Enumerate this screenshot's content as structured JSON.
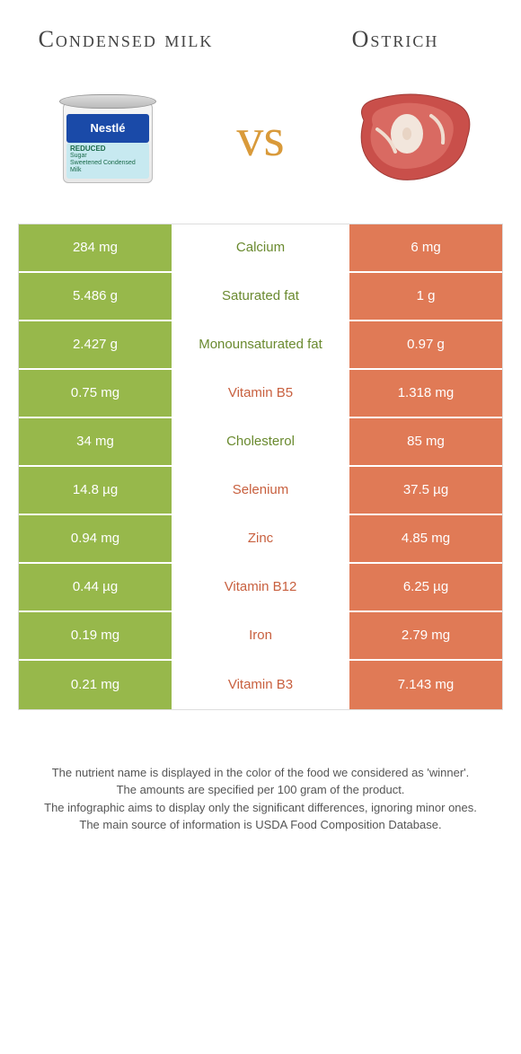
{
  "colors": {
    "left_bar": "#97b84b",
    "right_bar": "#e07a56",
    "left_text": "#6a8a2f",
    "right_text": "#c8603f",
    "row_gap": "#ffffff",
    "border": "#dddddd"
  },
  "header": {
    "left_title": "Condensed milk",
    "right_title": "Ostrich",
    "vs_text": "vs"
  },
  "can_label": "Nestlé",
  "can_band_top": "REDUCED",
  "can_band_sub": "Sugar\nSweetened Condensed Milk",
  "rows": [
    {
      "left": "284 mg",
      "name": "Calcium",
      "right": "6 mg",
      "winner": "left"
    },
    {
      "left": "5.486 g",
      "name": "Saturated fat",
      "right": "1 g",
      "winner": "left"
    },
    {
      "left": "2.427 g",
      "name": "Monounsaturated fat",
      "right": "0.97 g",
      "winner": "left"
    },
    {
      "left": "0.75 mg",
      "name": "Vitamin B5",
      "right": "1.318 mg",
      "winner": "right"
    },
    {
      "left": "34 mg",
      "name": "Cholesterol",
      "right": "85 mg",
      "winner": "left"
    },
    {
      "left": "14.8 µg",
      "name": "Selenium",
      "right": "37.5 µg",
      "winner": "right"
    },
    {
      "left": "0.94 mg",
      "name": "Zinc",
      "right": "4.85 mg",
      "winner": "right"
    },
    {
      "left": "0.44 µg",
      "name": "Vitamin B12",
      "right": "6.25 µg",
      "winner": "right"
    },
    {
      "left": "0.19 mg",
      "name": "Iron",
      "right": "2.79 mg",
      "winner": "right"
    },
    {
      "left": "0.21 mg",
      "name": "Vitamin B3",
      "right": "7.143 mg",
      "winner": "right"
    }
  ],
  "footer": {
    "line1": "The nutrient name is displayed in the color of the food we considered as 'winner'.",
    "line2": "The amounts are specified per 100 gram of the product.",
    "line3": "The infographic aims to display only the significant differences, ignoring minor ones.",
    "line4": "The main source of information is USDA Food Composition Database."
  }
}
